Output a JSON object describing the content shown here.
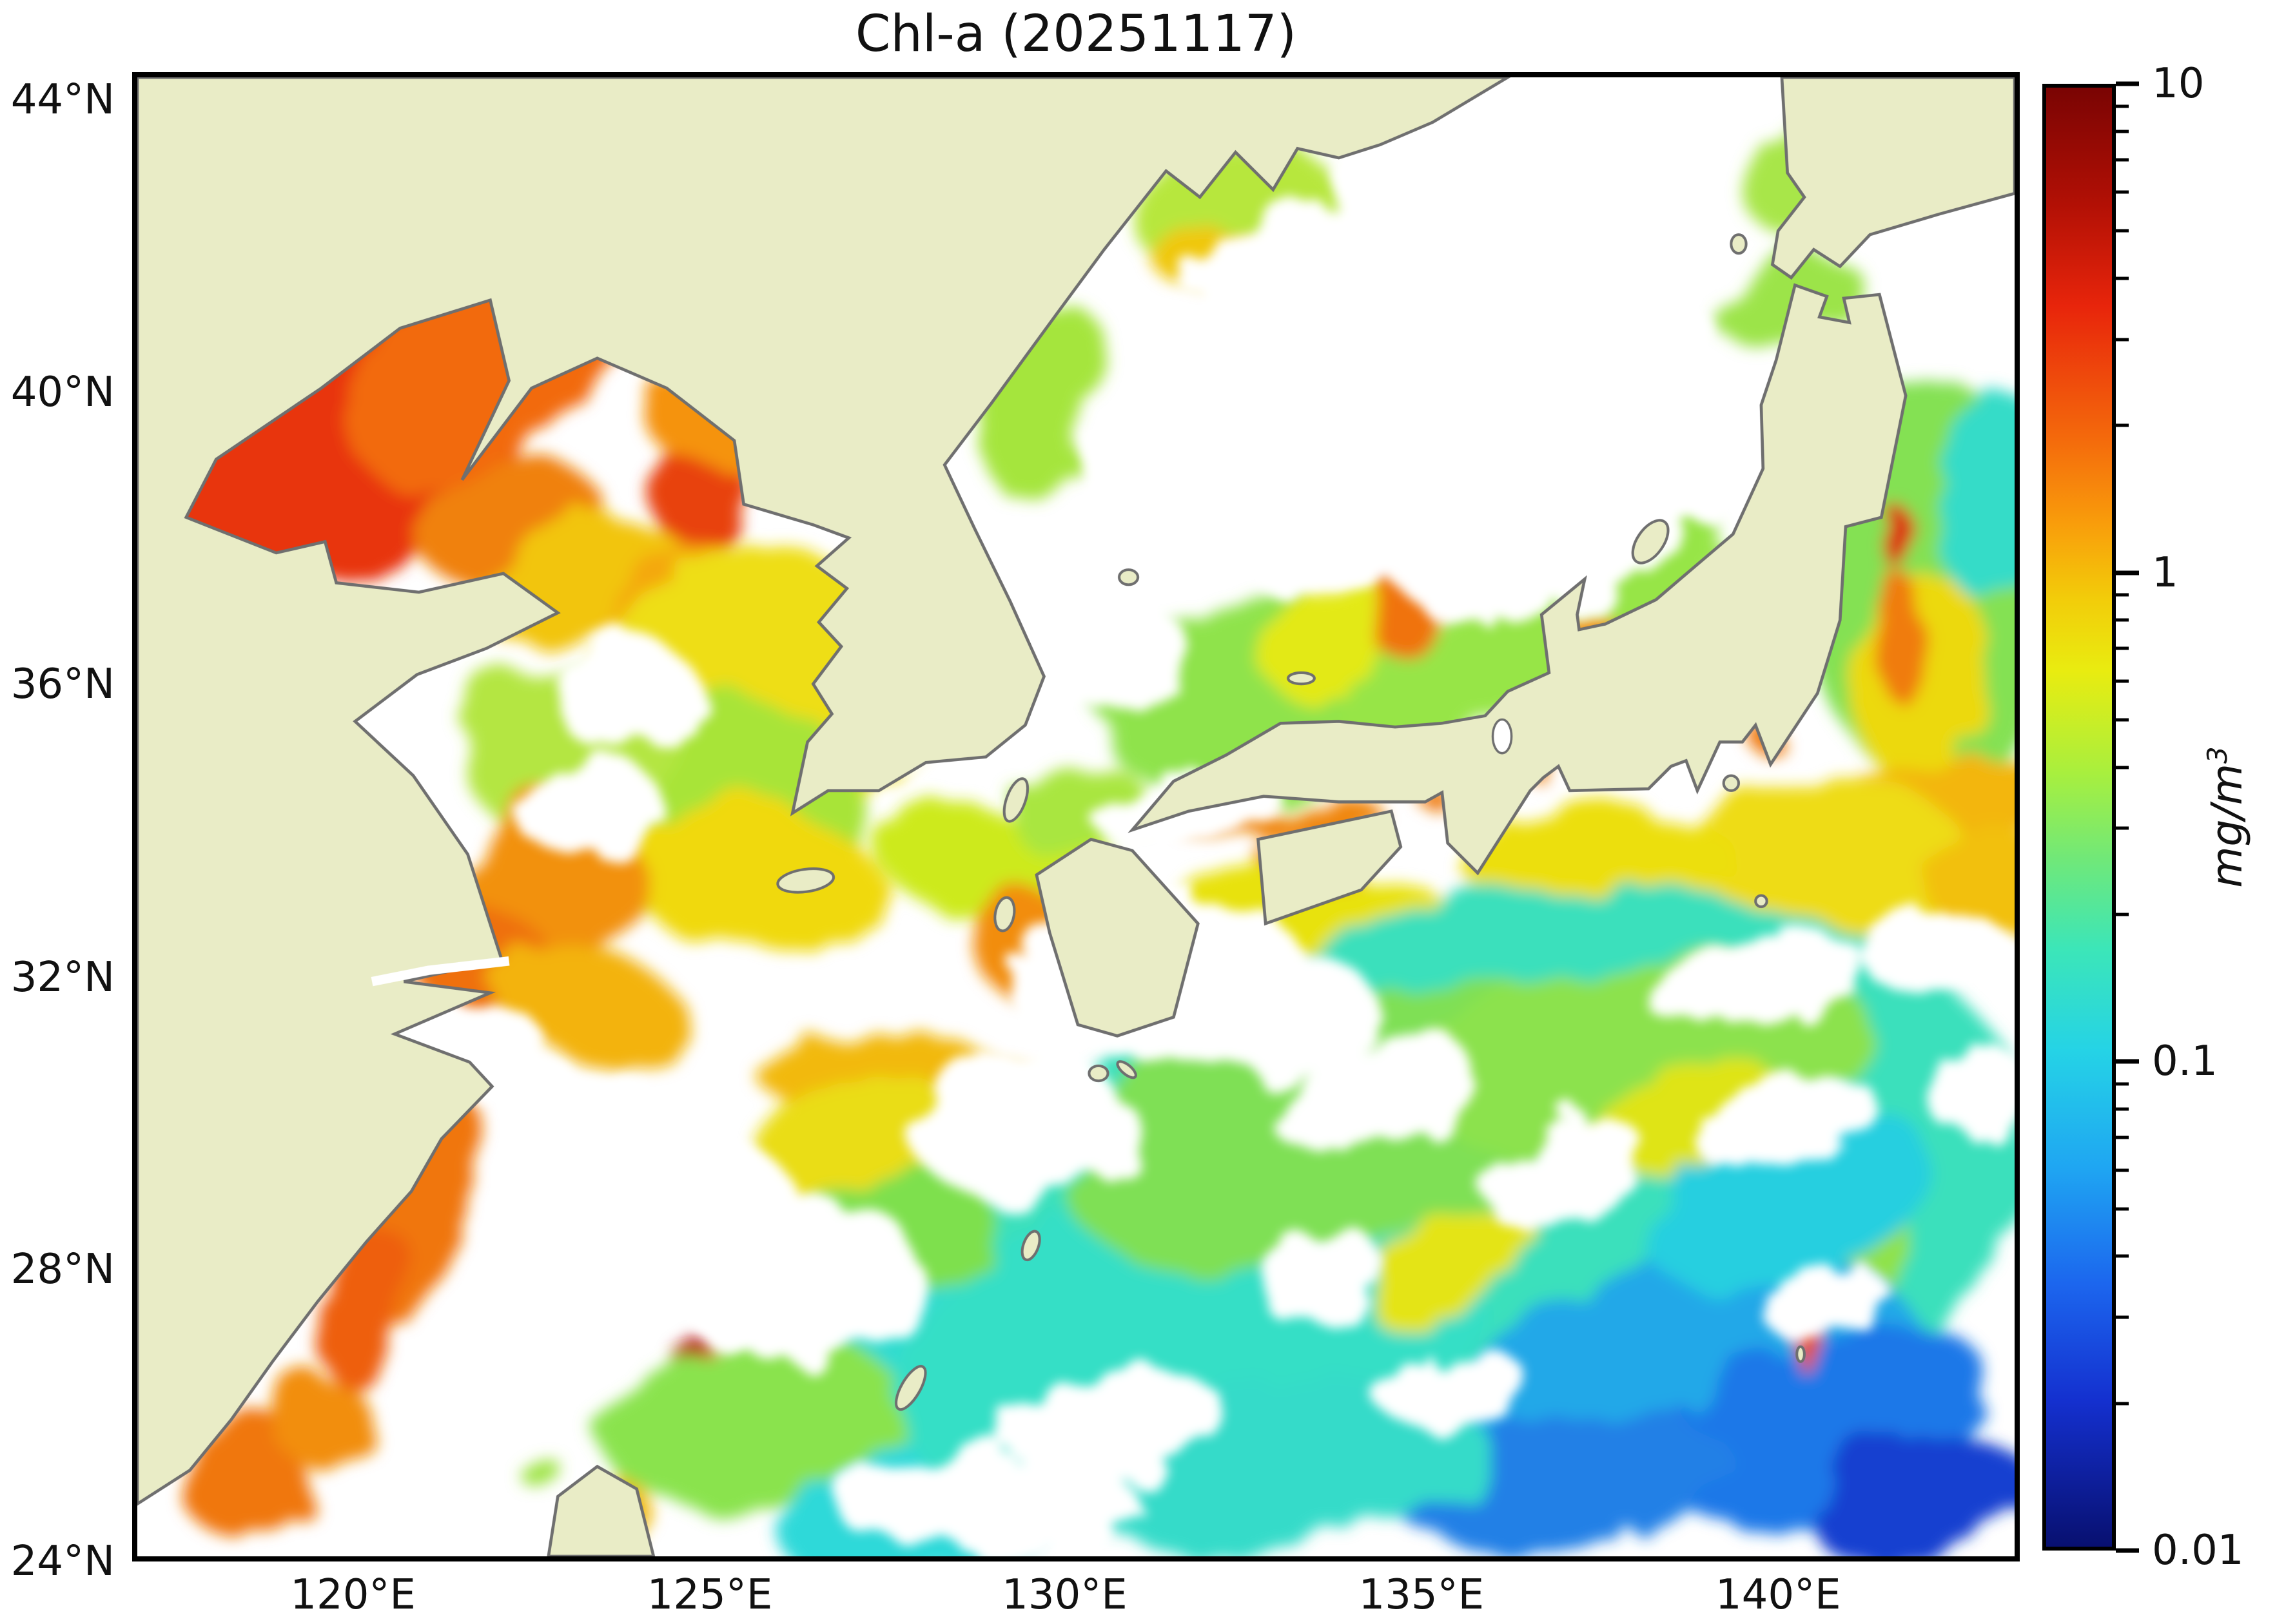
{
  "title": "Chl-a (20251117)",
  "axes": {
    "y_ticks": [
      {
        "label": "44°N",
        "pos": 1.86
      },
      {
        "label": "40°N",
        "pos": 21.5
      },
      {
        "label": "36°N",
        "pos": 41.1
      },
      {
        "label": "32°N",
        "pos": 60.8
      },
      {
        "label": "28°N",
        "pos": 80.4
      },
      {
        "label": "24°N",
        "pos": 100
      }
    ],
    "x_ticks": [
      {
        "label": "120°E",
        "pos": 11.7
      },
      {
        "label": "125°E",
        "pos": 30.6
      },
      {
        "label": "130°E",
        "pos": 49.4
      },
      {
        "label": "135°E",
        "pos": 68.3
      },
      {
        "label": "140°E",
        "pos": 87.2
      }
    ]
  },
  "colorbar": {
    "unit_base": "mg/m",
    "unit_exp": "3",
    "major_ticks": [
      {
        "label": "10",
        "pos": 0
      },
      {
        "label": "1",
        "pos": 33.33
      },
      {
        "label": "0.1",
        "pos": 66.67
      },
      {
        "label": "0.01",
        "pos": 100
      }
    ],
    "minor_values": [
      9,
      8,
      7,
      6,
      5,
      4,
      3,
      2,
      0.9,
      0.8,
      0.7,
      0.6,
      0.5,
      0.4,
      0.3,
      0.2,
      0.09,
      0.08,
      0.07,
      0.06,
      0.05,
      0.04,
      0.03,
      0.02
    ],
    "gradient": [
      [
        "0%",
        "#7a0403"
      ],
      [
        "8%",
        "#b21005"
      ],
      [
        "15%",
        "#e8250b"
      ],
      [
        "24%",
        "#f4690c"
      ],
      [
        "30%",
        "#f99e0b"
      ],
      [
        "35%",
        "#f2cc0a"
      ],
      [
        "40%",
        "#e9ec10"
      ],
      [
        "47%",
        "#a8ef3e"
      ],
      [
        "53%",
        "#6fe87a"
      ],
      [
        "59%",
        "#3ce6b8"
      ],
      [
        "66%",
        "#25d3e6"
      ],
      [
        "74%",
        "#1fa6f2"
      ],
      [
        "82%",
        "#1c66ee"
      ],
      [
        "90%",
        "#1430cf"
      ],
      [
        "100%",
        "#081070"
      ]
    ]
  },
  "map": {
    "land_color": "#e9ecc6",
    "coast_color": "#6f6f6f",
    "ocean_color": "#ffffff"
  },
  "chart_data": {
    "type": "heatmap",
    "title": "Chl-a (20251117)",
    "date": "20251117",
    "variable": "Chlorophyll-a concentration",
    "units": "mg/m3",
    "scale": "log10",
    "value_range": [
      0.01,
      10
    ],
    "colormap": "jet",
    "xlabel_ticks": [
      "120°E",
      "125°E",
      "130°E",
      "135°E",
      "140°E"
    ],
    "ylabel_ticks": [
      "44°N",
      "40°N",
      "36°N",
      "32°N",
      "28°N",
      "24°N"
    ],
    "lon_range_deg_e": [
      116.9,
      143.4
    ],
    "lat_range_deg_n": [
      24,
      44.4
    ],
    "no_data_color": "#ffffff",
    "regions": [
      [
        "bohai-darkest-red",
        9,
        "#a50b0b",
        35,
        228,
        40,
        30,
        -15
      ],
      [
        "bohai-core-red",
        8,
        "#cc1208",
        55,
        215,
        85,
        55,
        -20
      ],
      [
        "bohai-main-red",
        5,
        "#e8350e",
        110,
        195,
        110,
        70,
        -25
      ],
      [
        "bohai-orange-ne",
        3,
        "#f26a0d",
        185,
        160,
        80,
        45,
        -30
      ],
      [
        "bohai-orange-e",
        2.5,
        "#f0810f",
        200,
        240,
        55,
        35,
        0
      ],
      [
        "liaodong-east-red",
        4,
        "#e8430e",
        300,
        225,
        25,
        30,
        0
      ],
      [
        "korea-bay-orange",
        2,
        "#f5930d",
        310,
        180,
        40,
        28,
        0
      ],
      [
        "shandong-east-yellow",
        1.2,
        "#f2c50a",
        235,
        270,
        60,
        28,
        -15
      ],
      [
        "yellowsea-mid-gold",
        1.5,
        "#f4a80c",
        300,
        300,
        55,
        50,
        0
      ],
      [
        "yellowsea-yellow-field",
        1,
        "#eede14",
        330,
        330,
        90,
        80,
        0
      ],
      [
        "yellowsea-green-fringe",
        0.5,
        "#a8e438",
        310,
        390,
        80,
        60,
        0
      ],
      [
        "gyeonggi-bay-red",
        4,
        "#e84a10",
        440,
        290,
        18,
        22,
        0
      ],
      [
        "yellowsea-west-green",
        0.5,
        "#b4e642",
        230,
        360,
        60,
        45,
        0
      ],
      [
        "yellowsea-south-yellow",
        1,
        "#f0d90e",
        330,
        430,
        70,
        40,
        10
      ],
      [
        "jiangsu-coast-orange",
        2,
        "#f29110",
        220,
        430,
        45,
        55,
        20
      ],
      [
        "jiangsu-orange-south",
        2.5,
        "#ef6f0e",
        185,
        475,
        35,
        30,
        0
      ],
      [
        "yangtze-mouth-gold",
        1.5,
        "#f3b30b",
        240,
        495,
        55,
        28,
        15
      ],
      [
        "peter-great-bay-green",
        0.6,
        "#b7e73c",
        585,
        70,
        55,
        35,
        -10
      ],
      [
        "peter-great-bay-gold",
        1.2,
        "#f0c80c",
        570,
        95,
        30,
        18,
        0
      ],
      [
        "nk-east-coast-green",
        0.5,
        "#a5e53e",
        480,
        170,
        30,
        55,
        15
      ],
      [
        "japan-sea-center-green",
        0.4,
        "#8fe34c",
        600,
        330,
        90,
        55,
        -10
      ],
      [
        "japan-sea-center-yellow",
        0.8,
        "#e3e912",
        640,
        300,
        45,
        30,
        -15
      ],
      [
        "honshu-west-green-band",
        0.5,
        "#97e546",
        740,
        300,
        120,
        35,
        -28
      ],
      [
        "noto-red-bloom",
        7,
        "#c41408",
        668,
        272,
        8,
        22,
        0
      ],
      [
        "noto-orange",
        2.5,
        "#f0730e",
        672,
        285,
        16,
        26,
        0
      ],
      [
        "toyama-bay-orange",
        2,
        "#f28c0e",
        775,
        297,
        14,
        10,
        0
      ],
      [
        "tsugaru-green",
        0.5,
        "#9ce44a",
        880,
        120,
        40,
        22,
        -20
      ],
      [
        "hokkaido-west-green",
        0.5,
        "#a8e64a",
        885,
        60,
        25,
        30,
        0
      ],
      [
        "korea-strait-yellowgreen",
        0.7,
        "#cdea1c",
        460,
        420,
        70,
        30,
        10
      ],
      [
        "tsushima-green",
        0.5,
        "#a9e640",
        500,
        390,
        40,
        25,
        0
      ],
      [
        "tohoku-green-field",
        0.4,
        "#84e152",
        960,
        270,
        70,
        110,
        0
      ],
      [
        "tohoku-coastal-yellow",
        1,
        "#ecd90f",
        950,
        320,
        35,
        55,
        10
      ],
      [
        "sanriku-orange",
        2.5,
        "#f07c10",
        940,
        300,
        12,
        35,
        0
      ],
      [
        "sanriku-red-sliver",
        5,
        "#dd2b0c",
        937,
        245,
        6,
        18,
        0
      ],
      [
        "tohoku-offshore-cyan",
        0.15,
        "#35dcc8",
        985,
        220,
        30,
        60,
        0
      ],
      [
        "boso-orange-bloom",
        2.5,
        "#f4830c",
        880,
        415,
        65,
        35,
        -15
      ],
      [
        "boso-red-core",
        4,
        "#e83c0c",
        872,
        420,
        30,
        16,
        -15
      ],
      [
        "kuroshio-gold-band",
        1.5,
        "#f3b60b",
        950,
        390,
        70,
        25,
        -8
      ],
      [
        "boso-yellow-halo",
        1,
        "#eedc12",
        880,
        430,
        95,
        55,
        -12
      ],
      [
        "enshu-nada-yellow",
        1,
        "#ecdf10",
        780,
        420,
        70,
        28,
        -5
      ],
      [
        "kii-offshore-orange",
        2,
        "#f0830f",
        625,
        425,
        25,
        15,
        20
      ],
      [
        "seto-inland-sea-orange",
        2,
        "#f0860f",
        610,
        398,
        55,
        9,
        -4
      ],
      [
        "osaka-bay-orange",
        2.5,
        "#ef7a10",
        692,
        385,
        9,
        7,
        0
      ],
      [
        "ise-bay-orange",
        2.5,
        "#ef7a10",
        752,
        373,
        7,
        9,
        0
      ],
      [
        "tokyo-bay-orange",
        2.5,
        "#ef7a10",
        863,
        350,
        7,
        7,
        0
      ],
      [
        "shikoku-south-yellow",
        0.9,
        "#e8e211",
        635,
        455,
        80,
        30,
        5
      ],
      [
        "kyushu-west-orange",
        2,
        "#f28d0e",
        470,
        460,
        25,
        30,
        0
      ],
      [
        "east-china-sea-gold-band",
        1.3,
        "#f2b90c",
        430,
        545,
        110,
        28,
        12
      ],
      [
        "east-china-sea-yellow",
        1,
        "#eadd12",
        400,
        580,
        70,
        45,
        10
      ],
      [
        "east-china-sea-green",
        0.4,
        "#7ee04e",
        430,
        640,
        90,
        60,
        0
      ],
      [
        "east-china-sea-cyan",
        0.15,
        "#30dcd0",
        420,
        700,
        100,
        60,
        0
      ],
      [
        "zhejiang-coast-orange",
        2.5,
        "#f0760f",
        150,
        600,
        28,
        70,
        18
      ],
      [
        "zhejiang-coast-orange-s",
        3,
        "#ee5f0e",
        120,
        655,
        18,
        45,
        15
      ],
      [
        "wenzhou-red-bloom",
        8,
        "#b10d0a",
        297,
        687,
        10,
        14,
        0
      ],
      [
        "wenzhou-orange",
        3,
        "#ee6a0e",
        305,
        700,
        16,
        22,
        10
      ],
      [
        "fujian-corner-orange",
        2.5,
        "#f0770e",
        55,
        745,
        35,
        35,
        -40
      ],
      [
        "fujian-corner-orange2",
        2,
        "#f28e0d",
        100,
        720,
        25,
        25,
        0
      ],
      [
        "taiwan-east-gold",
        1.5,
        "#f0b90c",
        262,
        770,
        14,
        22,
        10
      ],
      [
        "taiwan-ne-green",
        0.6,
        "#9fe446",
        215,
        745,
        12,
        8,
        0
      ],
      [
        "ecs-south-green",
        0.45,
        "#8ae34e",
        330,
        720,
        80,
        45,
        -10
      ],
      [
        "okinawa-cyan",
        0.12,
        "#2fd9d9",
        430,
        760,
        90,
        40,
        -15
      ],
      [
        "pacific-turquoise-base",
        0.2,
        "#3ae0bc",
        730,
        600,
        280,
        160,
        -10
      ],
      [
        "pacific-turquoise-west",
        0.2,
        "#35dfc6",
        560,
        680,
        160,
        90,
        -12
      ],
      [
        "pacific-green-mid",
        0.35,
        "#7fe055",
        640,
        560,
        150,
        70,
        -15
      ],
      [
        "pacific-green-east",
        0.35,
        "#8ce24e",
        800,
        520,
        120,
        50,
        -10
      ],
      [
        "pacific-yellow-wisp",
        0.8,
        "#dfe414",
        820,
        560,
        60,
        25,
        -20
      ],
      [
        "pacific-yellow-wisp2",
        0.8,
        "#e4e412",
        700,
        635,
        50,
        20,
        -30
      ],
      [
        "pacific-green-wisp",
        0.4,
        "#90e24a",
        880,
        640,
        70,
        40,
        -25
      ],
      [
        "pacific-skyblue",
        0.07,
        "#22a8e8",
        830,
        690,
        120,
        60,
        -10
      ],
      [
        "pacific-blue",
        0.05,
        "#1e78e8",
        900,
        720,
        90,
        50,
        -20
      ],
      [
        "pacific-deepblue-corner",
        0.03,
        "#1640d0",
        950,
        760,
        60,
        30,
        -15
      ],
      [
        "pacific-blue-south",
        0.05,
        "#2280e6",
        760,
        750,
        90,
        35,
        -8
      ],
      [
        "pacific-cyan-se",
        0.12,
        "#28cfe0",
        880,
        600,
        80,
        45,
        -20
      ],
      [
        "izu-ridge-red-specks",
        3,
        "#e8520e",
        885,
        672,
        6,
        16,
        0
      ],
      [
        "kuroshio-ext-gold",
        1.2,
        "#f2c00b",
        990,
        430,
        40,
        30,
        0
      ],
      [
        "pacific-sw-cyan",
        0.15,
        "#36dbc9",
        600,
        740,
        120,
        45,
        -5
      ]
    ],
    "clouds_no_data": [
      [
        660,
        200,
        120,
        70,
        -15
      ],
      [
        760,
        230,
        100,
        50,
        -20
      ],
      [
        560,
        230,
        70,
        45,
        0
      ],
      [
        500,
        300,
        60,
        35,
        10
      ],
      [
        420,
        330,
        50,
        40,
        0
      ],
      [
        260,
        330,
        40,
        30,
        0
      ],
      [
        540,
        480,
        80,
        40,
        -10
      ],
      [
        600,
        500,
        60,
        35,
        -5
      ],
      [
        660,
        545,
        55,
        30,
        -20
      ],
      [
        470,
        560,
        60,
        40,
        0
      ],
      [
        350,
        640,
        70,
        45,
        0
      ],
      [
        300,
        600,
        50,
        35,
        0
      ],
      [
        860,
        480,
        60,
        25,
        -10
      ],
      [
        960,
        470,
        40,
        25,
        0
      ],
      [
        760,
        585,
        45,
        25,
        -25
      ],
      [
        880,
        560,
        50,
        22,
        -15
      ],
      [
        450,
        760,
        80,
        30,
        0
      ],
      [
        520,
        720,
        60,
        28,
        -10
      ],
      [
        250,
        560,
        45,
        30,
        15
      ],
      [
        180,
        520,
        40,
        25,
        0
      ],
      [
        980,
        540,
        30,
        25,
        0
      ],
      [
        700,
        700,
        40,
        20,
        -10
      ],
      [
        630,
        640,
        35,
        20,
        -20
      ],
      [
        900,
        655,
        35,
        18,
        -10
      ],
      [
        240,
        390,
        40,
        28,
        0
      ],
      [
        560,
        390,
        50,
        20,
        -10
      ],
      [
        640,
        120,
        80,
        50,
        0
      ],
      [
        760,
        120,
        70,
        45,
        0
      ],
      [
        700,
        60,
        60,
        35,
        0
      ]
    ],
    "islands": [
      [
        "jeju",
        356,
        429,
        15,
        6,
        -8
      ],
      [
        "tsushima",
        468,
        386,
        5,
        12,
        20
      ],
      [
        "ulleungdo",
        528,
        267,
        5,
        4,
        0
      ],
      [
        "sado",
        806,
        248,
        7,
        13,
        35
      ],
      [
        "oki",
        620,
        321,
        7,
        3,
        0
      ],
      [
        "okushiri",
        853,
        89,
        4,
        5,
        0
      ],
      [
        "izu-oshima",
        849,
        377,
        4,
        4,
        0
      ],
      [
        "hachijojima",
        865,
        440,
        3,
        3,
        0
      ],
      [
        "yakushima",
        512,
        532,
        5,
        4,
        0
      ],
      [
        "tanegashima",
        527,
        530,
        6,
        2.5,
        40
      ],
      [
        "amami",
        476,
        624,
        4,
        8,
        20
      ],
      [
        "okinawa",
        412,
        700,
        5,
        13,
        30
      ],
      [
        "goto",
        462,
        447,
        5,
        9,
        10
      ],
      [
        "ogasawara",
        886,
        682,
        2,
        4,
        0
      ]
    ]
  }
}
